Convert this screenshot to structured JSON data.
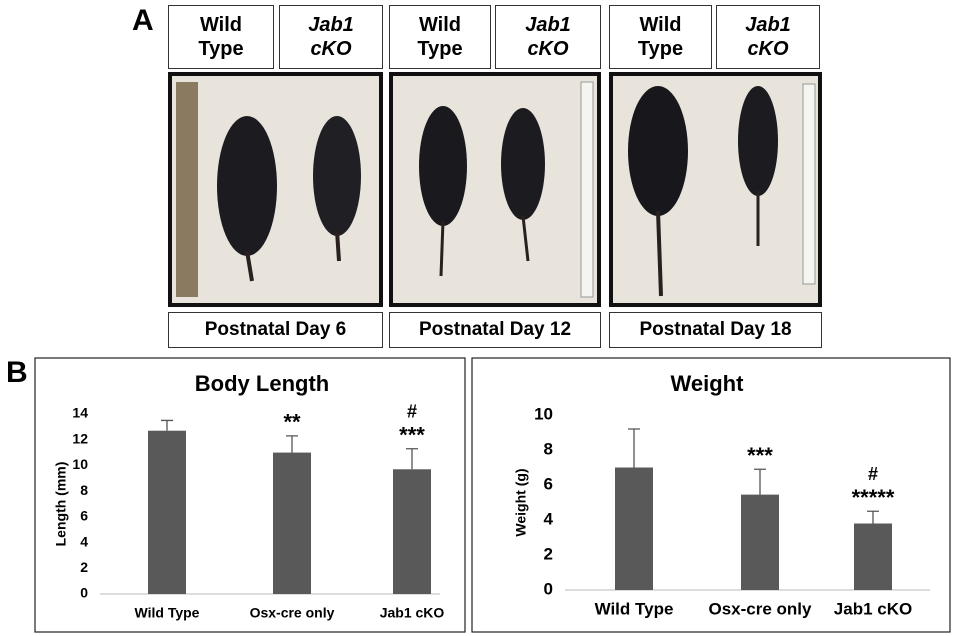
{
  "panel_a": {
    "label": "A",
    "headers": [
      "Wild Type",
      "Jab1 cKO",
      "Wild Type",
      "Jab1 cKO",
      "Wild Type",
      "Jab1 cKO"
    ],
    "captions": [
      "Postnatal Day 6",
      "Postnatal Day 12",
      "Postnatal Day 18"
    ]
  },
  "panel_b": {
    "label": "B"
  },
  "chart_data": [
    {
      "type": "bar",
      "title": "Body Length",
      "y_label": "Length (mm)",
      "categories": [
        "Wild Type",
        "Osx-cre only",
        "Jab1 cKO"
      ],
      "values": [
        12.7,
        11.0,
        9.7
      ],
      "errors": [
        0.8,
        1.3,
        1.6
      ],
      "significance": [
        null,
        "**",
        "***"
      ],
      "significance_vs_osx": [
        null,
        null,
        "#"
      ],
      "color": "#595959",
      "ylim": [
        0,
        14
      ],
      "yticks": [
        0,
        2,
        4,
        6,
        8,
        10,
        12,
        14
      ]
    },
    {
      "type": "bar",
      "title": "Weight",
      "y_label": "Weight (g)",
      "categories": [
        "Wild Type",
        "Osx-cre only",
        "Jab1 cKO"
      ],
      "values": [
        7.0,
        5.45,
        3.8
      ],
      "errors": [
        2.2,
        1.45,
        0.7
      ],
      "significance": [
        null,
        "***",
        "*****"
      ],
      "significance_vs_osx": [
        null,
        null,
        "#"
      ],
      "color": "#595959",
      "ylim": [
        0,
        10
      ],
      "yticks": [
        0,
        2,
        4,
        6,
        8,
        10
      ]
    }
  ]
}
